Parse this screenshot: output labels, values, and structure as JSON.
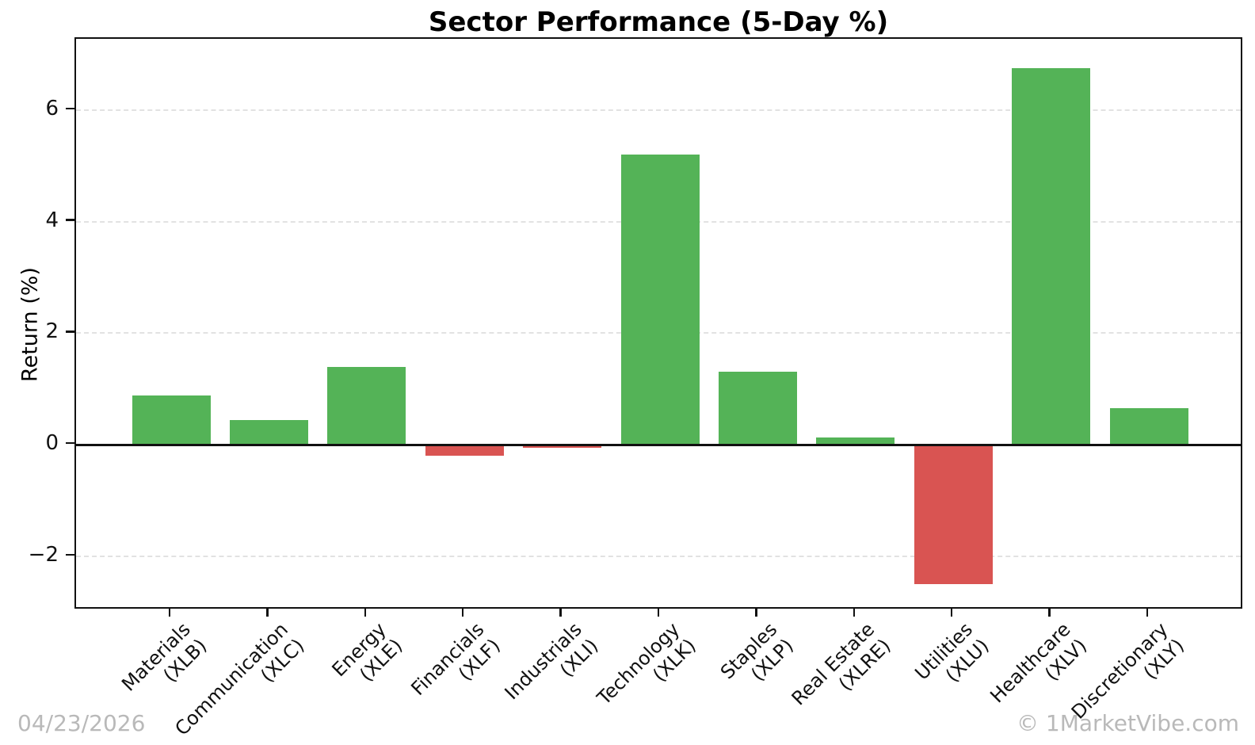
{
  "title": "Sector Performance (5-Day %)",
  "footer": {
    "date": "04/23/2026",
    "watermark": "© 1MarketVibe.com"
  },
  "chart_data": {
    "type": "bar",
    "title": "Sector Performance (5-Day %)",
    "xlabel": "",
    "ylabel": "Return (%)",
    "categories": [
      "Materials\n(XLB)",
      "Communication\n(XLC)",
      "Energy\n(XLE)",
      "Financials\n(XLF)",
      "Industrials\n(XLI)",
      "Technology\n(XLK)",
      "Staples\n(XLP)",
      "Real Estate\n(XLRE)",
      "Utilities\n(XLU)",
      "Healthcare\n(XLV)",
      "Discretionary\n(XLY)"
    ],
    "tickers": [
      "XLB",
      "XLC",
      "XLE",
      "XLF",
      "XLI",
      "XLK",
      "XLP",
      "XLRE",
      "XLU",
      "XLV",
      "XLY"
    ],
    "values": [
      0.88,
      0.44,
      1.4,
      -0.2,
      -0.05,
      5.2,
      1.31,
      0.13,
      -2.5,
      6.75,
      0.65
    ],
    "yticks": [
      -2,
      0,
      2,
      4,
      6
    ],
    "ylim": [
      -2.97,
      7.28
    ],
    "grid": "horizontal-dashed",
    "legend": "none",
    "colors": {
      "positive": "#54b357",
      "negative": "#d95452",
      "zero_line": "#111111",
      "grid": "#e2e2e2",
      "spine": "#111111",
      "watermark": "#b9b9b9",
      "background": "#ffffff"
    }
  }
}
